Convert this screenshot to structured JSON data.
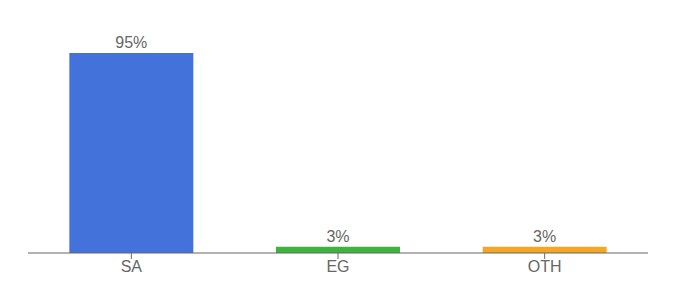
{
  "chart_data": {
    "type": "bar",
    "categories": [
      "SA",
      "EG",
      "OTH"
    ],
    "values": [
      95,
      3,
      3
    ],
    "value_labels": [
      "95%",
      "3%",
      "3%"
    ],
    "colors": [
      "#4472db",
      "#3db53d",
      "#f5a623"
    ],
    "ylim": [
      0,
      105
    ],
    "data_labels": true,
    "tick_labels": "x",
    "grid": false
  }
}
